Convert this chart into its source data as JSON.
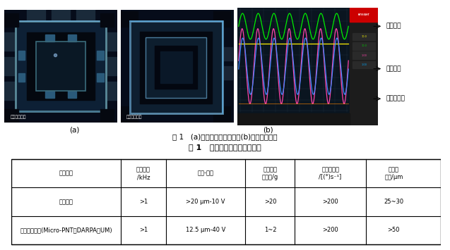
{
  "figure_caption": "图 1   (a)不同结构微振动台与(b)动态测试结果",
  "table_title": "表 1   微振动台性能参数及对比",
  "table_headers": [
    "微振动台",
    "谐振频率\n/kHz",
    "位移-电压",
    "带载输出\n加速度/g",
    "输出角速度\n/[(°)s⁻¹]",
    "执行器\n厚度/μm"
  ],
  "table_rows": [
    [
      "自研芯片",
      ">1",
      ">20 μm-10 V",
      ">20",
      ">200",
      "25~30"
    ],
    [
      "国际最新进展(Micro-PNT，DARPA，UM)",
      ">1",
      "12.5 μm-40 V",
      "1~2",
      ">200",
      ">50"
    ]
  ],
  "label_a": "(a)",
  "label_b": "(b)",
  "legend_items": [
    "驱动电压",
    "振动位移",
    "振动加速度"
  ],
  "legend_colors": [
    "#00cc00",
    "#4488ff",
    "#ff44aa"
  ],
  "bg_color": "#ffffff",
  "img1_label": "回摆架振动台",
  "img2_label": "蝴蝶架振动台"
}
